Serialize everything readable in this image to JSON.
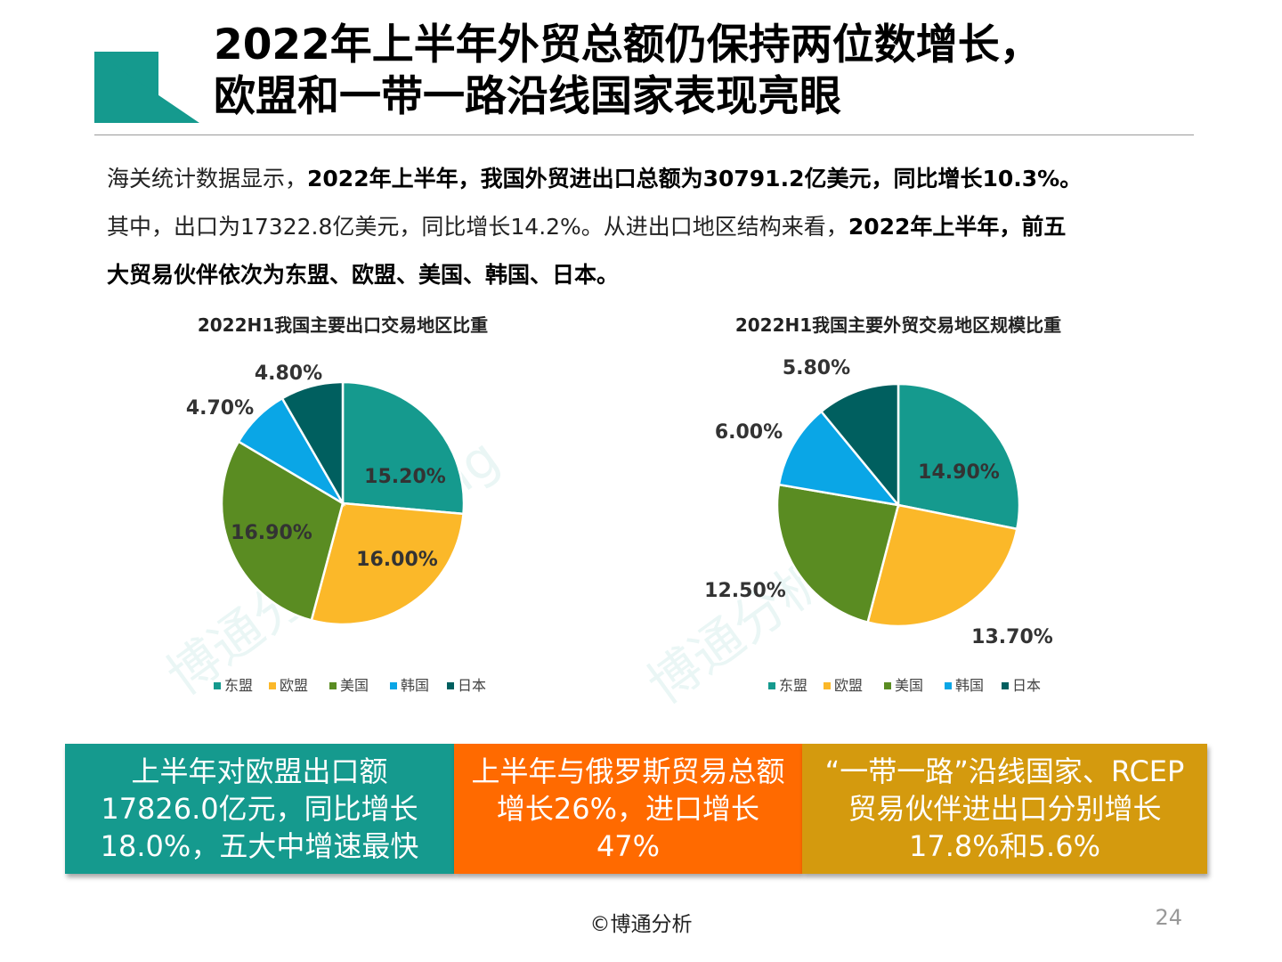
{
  "slide": {
    "title_line1": "2022年上半年外贸总额仍保持两位数增长，",
    "title_line2": "欧盟和一带一路沿线国家表现亮眼",
    "intro": {
      "p1_a": "海关统计数据显示，",
      "p1_b": "2022年上半年，我国外贸进出口总额为30791.2亿美元，同比增长10.3%。",
      "p2_a": "其中，出口为17322.8亿美元，同比增长14.2%。从进出口地区结构来看，",
      "p2_b": "2022年上半年，前五",
      "p3_b": "大贸易伙伴依次为东盟、欧盟、美国、韩国、日本。"
    },
    "boxes": [
      {
        "text": "上半年对欧盟出口额17826.0亿元，同比增长18.0%，五大中增速最快",
        "color": "#159a8e"
      },
      {
        "text": "上半年与俄罗斯贸易总额增长26%，进口增长47%",
        "color": "#ff6a00"
      },
      {
        "text": "“一带一路”沿线国家、RCEP贸易伙伴进出口分别增长17.8%和5.6%",
        "color": "#d49a0e"
      }
    ],
    "footer": "©博通分析",
    "page_number": "24",
    "watermark": "博通分析BoTong"
  },
  "chart_data": [
    {
      "type": "pie",
      "title": "2022H1我国主要出口交易地区比重",
      "labels": [
        "东盟",
        "欧盟",
        "美国",
        "韩国",
        "日本"
      ],
      "values": [
        15.2,
        16.0,
        16.9,
        4.7,
        4.8
      ],
      "value_labels": [
        "15.20%",
        "16.00%",
        "16.90%",
        "4.70%",
        "4.80%"
      ],
      "colors": [
        "#159a8e",
        "#fbb829",
        "#5a8c22",
        "#0aa6e6",
        "#005f5f"
      ],
      "legend": "bottom"
    },
    {
      "type": "pie",
      "title": "2022H1我国主要外贸交易地区规模比重",
      "labels": [
        "东盟",
        "欧盟",
        "美国",
        "韩国",
        "日本"
      ],
      "values": [
        14.9,
        13.7,
        12.5,
        6.0,
        5.8
      ],
      "value_labels": [
        "14.90%",
        "13.70%",
        "12.50%",
        "6.00%",
        "5.80%"
      ],
      "colors": [
        "#159a8e",
        "#fbb829",
        "#5a8c22",
        "#0aa6e6",
        "#005f5f"
      ],
      "legend": "bottom"
    }
  ]
}
